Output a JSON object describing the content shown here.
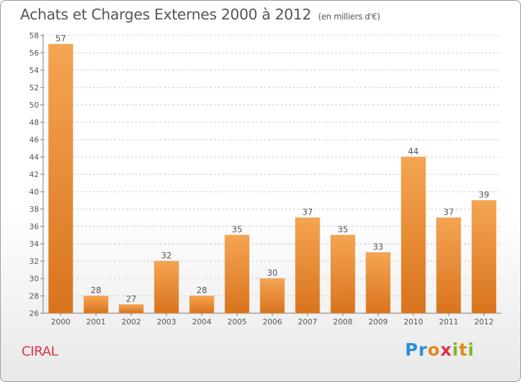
{
  "header": {
    "title": "Achats et Charges Externes 2000 à 2012",
    "unit": "(en milliers d'€)"
  },
  "footer": {
    "town": "CIRAL",
    "logo_letters": [
      "P",
      "r",
      "o",
      "x",
      "i",
      "t",
      "i"
    ]
  },
  "colors": {
    "bar_top": "#f5a552",
    "bar_bottom": "#d9731d",
    "grid": "#c8c8c8",
    "axis": "#777777",
    "text": "#555555"
  },
  "chart_data": {
    "type": "bar",
    "title": "Achats et Charges Externes 2000 à 2012",
    "subtitle": "(en milliers d'€)",
    "categories": [
      "2000",
      "2001",
      "2002",
      "2003",
      "2004",
      "2005",
      "2006",
      "2007",
      "2008",
      "2009",
      "2010",
      "2011",
      "2012"
    ],
    "values": [
      57,
      28,
      27,
      32,
      28,
      35,
      30,
      37,
      35,
      33,
      44,
      37,
      39
    ],
    "ylim": [
      26,
      58
    ],
    "yticks": [
      26,
      28,
      30,
      32,
      34,
      36,
      38,
      40,
      42,
      44,
      46,
      48,
      50,
      52,
      54,
      56,
      58
    ],
    "grid": true,
    "data_labels": true
  }
}
